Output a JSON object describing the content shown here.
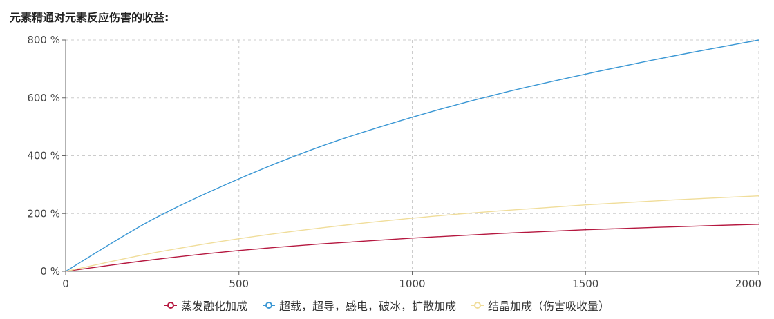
{
  "title": "元素精通对元素反应伤害的收益:",
  "chart_data": {
    "type": "line",
    "title": "元素精通对元素反应伤害的收益:",
    "xlabel": "",
    "ylabel": "",
    "xlim": [
      0,
      2000
    ],
    "ylim": [
      0,
      800
    ],
    "xticks": [
      0,
      500,
      1000,
      1500,
      2000
    ],
    "yticks": [
      0,
      200,
      400,
      600,
      800
    ],
    "ytick_suffix": " %",
    "grid": true,
    "legend_position": "bottom-center",
    "series": [
      {
        "name": "蒸发融化加成",
        "color": "#b5173f",
        "x": [
          0,
          250,
          500,
          750,
          1000,
          1250,
          1500,
          1750,
          2000
        ],
        "values": [
          0,
          40,
          72,
          96,
          115,
          131,
          144,
          154,
          163
        ]
      },
      {
        "name": "超载，超导，感电，破冰，扩散加成",
        "color": "#3a97d4",
        "x": [
          0,
          250,
          500,
          750,
          1000,
          1250,
          1500,
          1750,
          2000
        ],
        "values": [
          0,
          179,
          320,
          438,
          533,
          614,
          682,
          744,
          800
        ]
      },
      {
        "name": "结晶加成（伤害吸收量）",
        "color": "#f0dd9a",
        "x": [
          0,
          250,
          500,
          750,
          1000,
          1250,
          1500,
          1750,
          2000
        ],
        "values": [
          0,
          63,
          113,
          152,
          184,
          209,
          230,
          247,
          261
        ]
      }
    ]
  }
}
